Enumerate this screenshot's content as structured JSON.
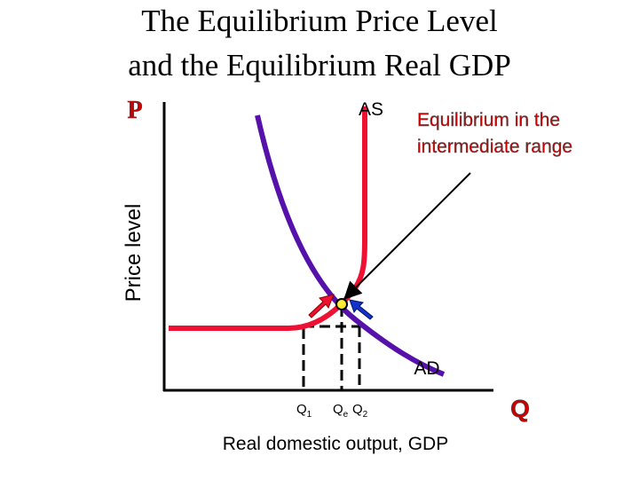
{
  "title": [
    "The Equilibrium Price Level",
    "and the Equilibrium Real GDP"
  ],
  "axis_labels": {
    "y_letter": "P",
    "y_title": "Price level",
    "x_letter": "Q",
    "x_title": "Real domestic output, GDP"
  },
  "curves": {
    "as": "AS",
    "ad": "AD"
  },
  "annotation": [
    "Equilibrium in the",
    "intermediate range"
  ],
  "q_labels": [
    {
      "main": "Q",
      "sub": "1"
    },
    {
      "main": "Q",
      "sub": "e"
    },
    {
      "main": "Q",
      "sub": "2"
    }
  ]
}
